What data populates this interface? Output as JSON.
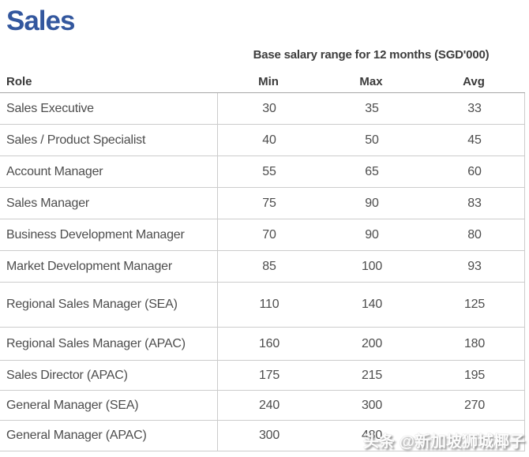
{
  "page": {
    "title": "Sales"
  },
  "table": {
    "subtitle": "Base salary range for 12 months (SGD'000)",
    "columns": {
      "role": "Role",
      "min": "Min",
      "max": "Max",
      "avg": "Avg"
    },
    "rows": [
      {
        "role": "Sales Executive",
        "min": "30",
        "max": "35",
        "avg": "33"
      },
      {
        "role": "Sales / Product Specialist",
        "min": "40",
        "max": "50",
        "avg": "45"
      },
      {
        "role": "Account Manager",
        "min": "55",
        "max": "65",
        "avg": "60"
      },
      {
        "role": "Sales Manager",
        "min": "75",
        "max": "90",
        "avg": "83"
      },
      {
        "role": "Business Development Manager",
        "min": "70",
        "max": "90",
        "avg": "80"
      },
      {
        "role": "Market Development Manager",
        "min": "85",
        "max": "100",
        "avg": "93"
      },
      {
        "role": "Regional Sales Manager (SEA)",
        "min": "110",
        "max": "140",
        "avg": "125"
      },
      {
        "role": "Regional Sales Manager (APAC)",
        "min": "160",
        "max": "200",
        "avg": "180"
      },
      {
        "role": "Sales Director (APAC)",
        "min": "175",
        "max": "215",
        "avg": "195"
      },
      {
        "role": "General Manager (SEA)",
        "min": "240",
        "max": "300",
        "avg": "270"
      },
      {
        "role": "General Manager (APAC)",
        "min": "300",
        "max": "480",
        "avg": ""
      }
    ]
  },
  "watermark": {
    "text": "头条 @新加坡狮城椰子"
  },
  "colors": {
    "title_blue": "#33579E",
    "header_text": "#3a3a3a",
    "body_text": "#4d4d4d",
    "row_border": "#cccccc",
    "header_border": "#a6a6a6"
  }
}
